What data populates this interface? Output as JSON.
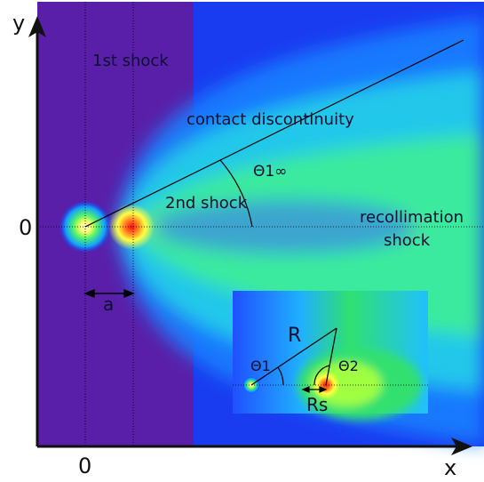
{
  "axes": {
    "x_label": "x",
    "y_label": "y",
    "x_origin": "0",
    "y_origin": "0"
  },
  "labels": {
    "first_shock": "1st shock",
    "contact_discontinuity": "contact discontinuity",
    "second_shock": "2nd shock",
    "theta_1_inf": "Θ1∞",
    "recollimation_1": "recollimation",
    "recollimation_2": "shock",
    "a": "a"
  },
  "inset": {
    "R": "R",
    "theta_1": "Θ1",
    "theta_2": "Θ2",
    "R_s": "Rs"
  },
  "colors": {
    "axis": "#111111",
    "shock_hot": "#ff3020",
    "background_deep": "#5a1fa8"
  }
}
